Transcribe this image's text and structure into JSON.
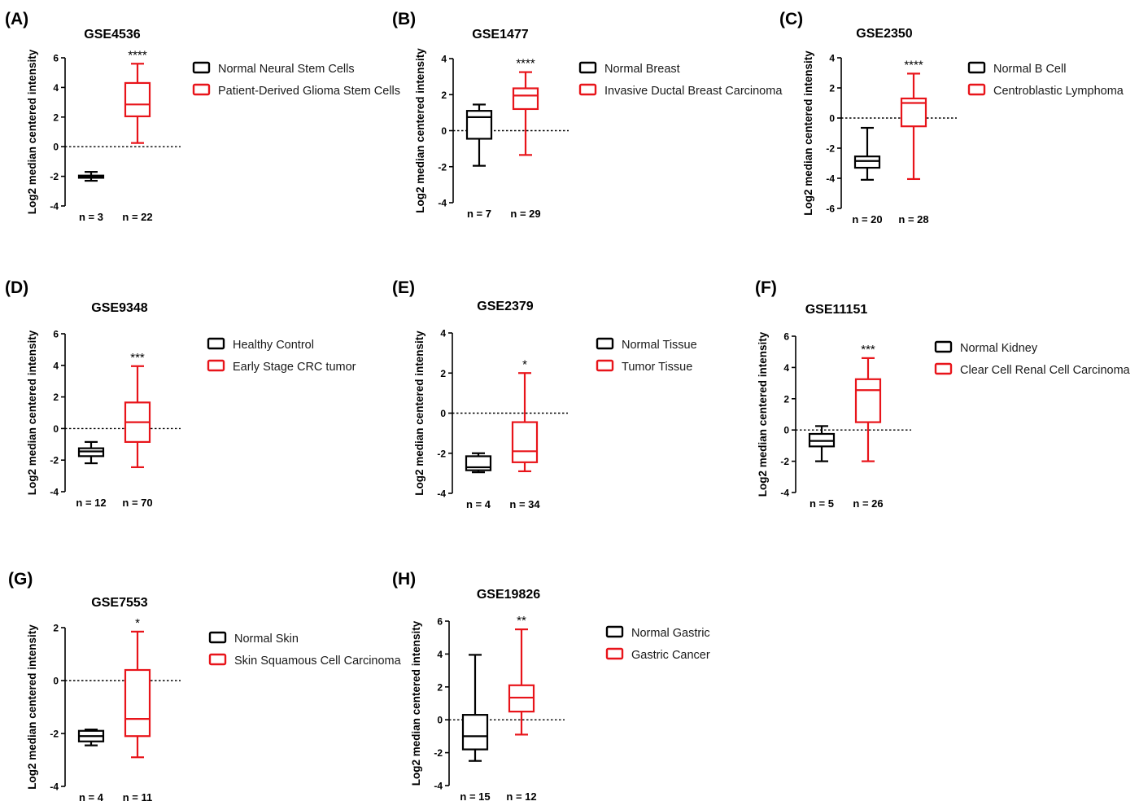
{
  "chart_data": [
    {
      "type": "box",
      "panel": "(A)",
      "title": "GSE4536",
      "ylabel": "Log2 median centered intensity",
      "ylim": [
        -4,
        6
      ],
      "yticks": [
        6,
        4,
        2,
        0,
        -2,
        -4
      ],
      "reference_line": 0,
      "significance": "****",
      "series": [
        {
          "name": "Normal Neural Stem Cells",
          "n_label": "n = 3",
          "color": "#000000",
          "min": -2.3,
          "q1": -2.1,
          "median": -2.0,
          "q3": -1.95,
          "max": -1.7
        },
        {
          "name": "Patient-Derived Glioma Stem Cells",
          "n_label": "n = 22",
          "color": "#e8141a",
          "min": 0.25,
          "q1": 2.05,
          "median": 2.85,
          "q3": 4.3,
          "max": 5.6
        }
      ]
    },
    {
      "type": "box",
      "panel": "(B)",
      "title": "GSE1477",
      "ylabel": "Log2 median centered intensity",
      "ylim": [
        -4,
        4
      ],
      "yticks": [
        4,
        2,
        0,
        -2,
        -4
      ],
      "reference_line": 0,
      "significance": "****",
      "series": [
        {
          "name": "Normal Breast",
          "n_label": "n = 7",
          "color": "#000000",
          "min": -1.95,
          "q1": -0.45,
          "median": 0.75,
          "q3": 1.1,
          "max": 1.45
        },
        {
          "name": "Invasive Ductal Breast Carcinoma",
          "n_label": "n = 29",
          "color": "#e8141a",
          "min": -1.35,
          "q1": 1.2,
          "median": 1.95,
          "q3": 2.35,
          "max": 3.25
        }
      ]
    },
    {
      "type": "box",
      "panel": "(C)",
      "title": "GSE2350",
      "ylabel": "Log2 median centered intensity",
      "ylim": [
        -6,
        4
      ],
      "yticks": [
        4,
        2,
        0,
        -2,
        -4,
        -6
      ],
      "reference_line": 0,
      "significance": "****",
      "series": [
        {
          "name": "Normal B Cell",
          "n_label": "n = 20",
          "color": "#000000",
          "min": -4.1,
          "q1": -3.3,
          "median": -2.85,
          "q3": -2.55,
          "max": -0.65
        },
        {
          "name": "Centroblastic Lymphoma",
          "n_label": "n = 28",
          "color": "#e8141a",
          "min": -4.05,
          "q1": -0.55,
          "median": 1.0,
          "q3": 1.3,
          "max": 2.95
        }
      ]
    },
    {
      "type": "box",
      "panel": "(D)",
      "title": "GSE9348",
      "ylabel": "Log2 median centered intensity",
      "ylim": [
        -4,
        6
      ],
      "yticks": [
        6,
        4,
        2,
        0,
        -2,
        -4
      ],
      "reference_line": 0,
      "significance": "***",
      "series": [
        {
          "name": "Healthy Control",
          "n_label": "n = 12",
          "color": "#000000",
          "min": -2.2,
          "q1": -1.75,
          "median": -1.45,
          "q3": -1.25,
          "max": -0.85
        },
        {
          "name": "Early Stage CRC tumor",
          "n_label": "n = 70",
          "color": "#e8141a",
          "min": -2.45,
          "q1": -0.85,
          "median": 0.4,
          "q3": 1.65,
          "max": 3.95
        }
      ]
    },
    {
      "type": "box",
      "panel": "(E)",
      "title": "GSE2379",
      "ylabel": "Log2 median centered intensity",
      "ylim": [
        -4,
        4
      ],
      "yticks": [
        4,
        2,
        0,
        -2,
        -4
      ],
      "reference_line": 0,
      "significance": "*",
      "series": [
        {
          "name": "Normal Tissue",
          "n_label": "n = 4",
          "color": "#000000",
          "min": -2.95,
          "q1": -2.85,
          "median": -2.7,
          "q3": -2.15,
          "max": -2.0
        },
        {
          "name": "Tumor Tissue",
          "n_label": "n = 34",
          "color": "#e8141a",
          "min": -2.9,
          "q1": -2.45,
          "median": -1.9,
          "q3": -0.45,
          "max": 2.0
        }
      ]
    },
    {
      "type": "box",
      "panel": "(F)",
      "title": "GSE11151",
      "ylabel": "Log2 median centered intensity",
      "ylim": [
        -4,
        6
      ],
      "yticks": [
        6,
        4,
        2,
        0,
        -2,
        -4
      ],
      "reference_line": 0,
      "significance": "***",
      "series": [
        {
          "name": "Normal Kidney",
          "n_label": "n = 5",
          "color": "#000000",
          "min": -2.0,
          "q1": -1.05,
          "median": -0.7,
          "q3": -0.25,
          "max": 0.25
        },
        {
          "name": "Clear Cell Renal Cell Carcinoma",
          "n_label": "n = 26",
          "color": "#e8141a",
          "min": -2.0,
          "q1": 0.5,
          "median": 2.55,
          "q3": 3.25,
          "max": 4.6
        }
      ]
    },
    {
      "type": "box",
      "panel": "(G)",
      "title": "GSE7553",
      "ylabel": "Log2 median centered intensity",
      "ylim": [
        -4,
        2
      ],
      "yticks": [
        2,
        0,
        -2,
        -4
      ],
      "reference_line": 0,
      "significance": "*",
      "series": [
        {
          "name": "Normal Skin",
          "n_label": "n = 4",
          "color": "#000000",
          "min": -2.45,
          "q1": -2.3,
          "median": -2.1,
          "q3": -1.9,
          "max": -1.85
        },
        {
          "name": "Skin Squamous Cell Carcinoma",
          "n_label": "n = 11",
          "color": "#e8141a",
          "min": -2.9,
          "q1": -2.1,
          "median": -1.45,
          "q3": 0.4,
          "max": 1.85
        }
      ]
    },
    {
      "type": "box",
      "panel": "(H)",
      "title": "GSE19826",
      "ylabel": "Log2 median centered intensity",
      "ylim": [
        -4,
        6
      ],
      "yticks": [
        6,
        4,
        2,
        0,
        -2,
        -4
      ],
      "reference_line": 0,
      "significance": "**",
      "series": [
        {
          "name": "Normal Gastric",
          "n_label": "n = 15",
          "color": "#000000",
          "min": -2.5,
          "q1": -1.8,
          "median": -1.0,
          "q3": 0.3,
          "max": 3.95
        },
        {
          "name": "Gastric Cancer",
          "n_label": "n = 12",
          "color": "#e8141a",
          "min": -0.9,
          "q1": 0.5,
          "median": 1.35,
          "q3": 2.1,
          "max": 5.5
        }
      ]
    }
  ]
}
